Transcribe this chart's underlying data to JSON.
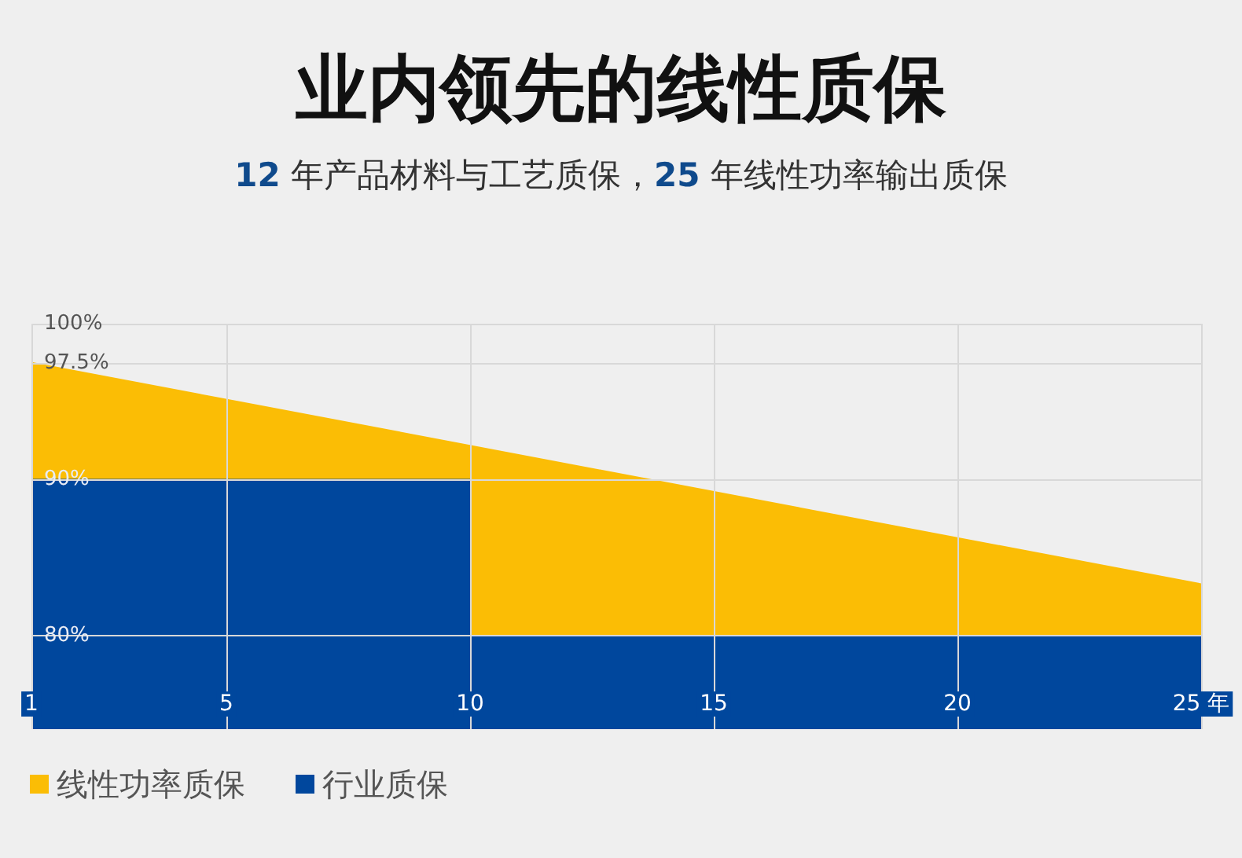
{
  "chart_data": {
    "type": "area",
    "title": "业内领先的线性质保",
    "subtitle": "12 年产品材料与工艺质保，25 年线性功率输出质保",
    "x": [
      1,
      25
    ],
    "xlim": [
      1,
      25
    ],
    "xticks": [
      1,
      5,
      10,
      15,
      20,
      {
        "value": 25,
        "label": "25 年"
      }
    ],
    "ylim": [
      74,
      100
    ],
    "yticks": [
      {
        "value": 80,
        "label": "80%"
      },
      {
        "value": 90,
        "label": "90%"
      },
      {
        "value": 97.5,
        "label": "97.5%"
      },
      {
        "value": 100,
        "label": "100%"
      }
    ],
    "series": [
      {
        "name": "线性功率质保",
        "color": "#fbbd05",
        "values": [
          97.5,
          83.3
        ]
      },
      {
        "name": "行业质保",
        "color": "#00479d",
        "x": [
          1,
          10,
          10,
          25
        ],
        "values": [
          90,
          90,
          80,
          80
        ]
      }
    ],
    "grid": true,
    "legend": "bottom left"
  }
}
